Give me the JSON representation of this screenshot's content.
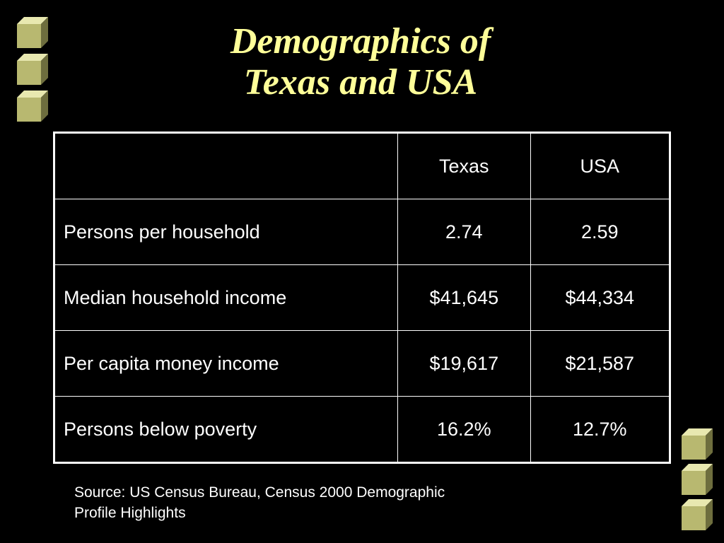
{
  "slide": {
    "title_line1": "Demographics of",
    "title_line2": "Texas and USA"
  },
  "table": {
    "columns": [
      "",
      "Texas",
      "USA"
    ],
    "rows": [
      {
        "label": "Persons per household",
        "texas": "2.74",
        "usa": "2.59"
      },
      {
        "label": "Median household income",
        "texas": "$41,645",
        "usa": "$44,334"
      },
      {
        "label": "Per capita money income",
        "texas": "$19,617",
        "usa": "$21,587"
      },
      {
        "label": "Persons below poverty",
        "texas": "16.2%",
        "usa": "12.7%"
      }
    ]
  },
  "source_note": {
    "line1": "Source: US Census Bureau, Census 2000 Demographic",
    "line2": "Profile Highlights"
  },
  "decor": {
    "icon": "cube-icon",
    "colors": {
      "background": "#000000",
      "title": "#ffff99",
      "cube_front": "#b8b870",
      "cube_top": "#e8e8b0",
      "cube_side": "#6e6e3e"
    }
  }
}
